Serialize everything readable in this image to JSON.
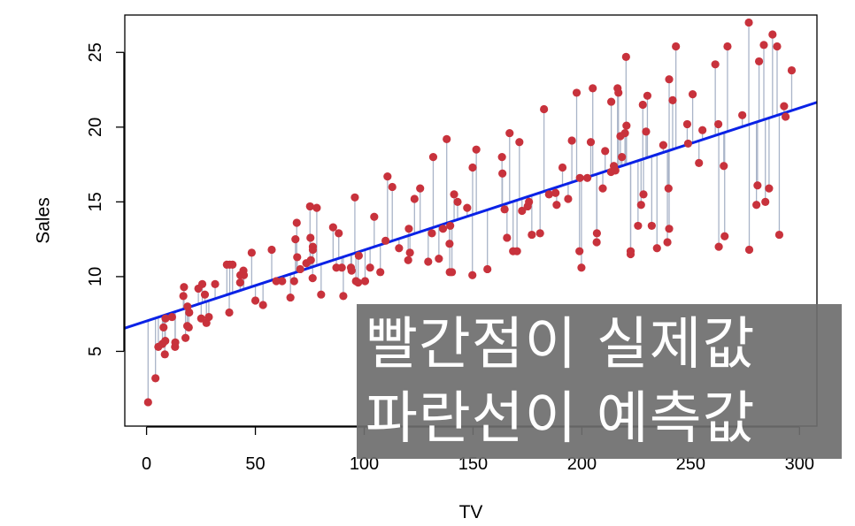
{
  "chart_data": {
    "type": "scatter",
    "xlabel": "TV",
    "ylabel": "Sales",
    "xlim": [
      -10,
      308
    ],
    "ylim": [
      0,
      27.5
    ],
    "x_ticks": [
      0,
      50,
      100,
      150,
      200,
      250,
      300
    ],
    "y_ticks": [
      5,
      10,
      15,
      20,
      25
    ],
    "grid": false,
    "point_color": "#c8323c",
    "residual_color": "#a9b4c8",
    "regression_line": {
      "intercept": 7.03,
      "slope": 0.0475,
      "color": "#0a22e6"
    },
    "points": [
      [
        0.7,
        1.6
      ],
      [
        4.1,
        3.2
      ],
      [
        5.4,
        5.3
      ],
      [
        7.3,
        5.5
      ],
      [
        7.8,
        6.6
      ],
      [
        8.4,
        4.8
      ],
      [
        8.6,
        5.7
      ],
      [
        8.7,
        7.2
      ],
      [
        11.7,
        7.3
      ],
      [
        13.1,
        5.3
      ],
      [
        13.2,
        5.6
      ],
      [
        16.9,
        8.7
      ],
      [
        17.2,
        9.3
      ],
      [
        17.9,
        5.9
      ],
      [
        18.7,
        6.7
      ],
      [
        18.8,
        8.0
      ],
      [
        19.4,
        6.6
      ],
      [
        19.6,
        7.6
      ],
      [
        23.8,
        9.2
      ],
      [
        25.1,
        7.2
      ],
      [
        25.6,
        9.5
      ],
      [
        26.8,
        8.8
      ],
      [
        27.5,
        6.9
      ],
      [
        28.6,
        7.3
      ],
      [
        31.5,
        9.5
      ],
      [
        36.9,
        10.8
      ],
      [
        38.0,
        7.6
      ],
      [
        38.2,
        10.8
      ],
      [
        39.5,
        10.8
      ],
      [
        43.0,
        9.6
      ],
      [
        43.1,
        10.1
      ],
      [
        44.5,
        10.4
      ],
      [
        44.7,
        10.1
      ],
      [
        48.3,
        11.6
      ],
      [
        50.0,
        8.4
      ],
      [
        53.5,
        8.1
      ],
      [
        57.5,
        11.8
      ],
      [
        59.6,
        9.7
      ],
      [
        62.3,
        9.7
      ],
      [
        66.1,
        8.6
      ],
      [
        67.8,
        9.7
      ],
      [
        68.4,
        12.5
      ],
      [
        69.0,
        13.6
      ],
      [
        69.2,
        11.3
      ],
      [
        70.6,
        10.5
      ],
      [
        73.4,
        10.9
      ],
      [
        75.1,
        14.7
      ],
      [
        75.3,
        12.6
      ],
      [
        75.5,
        11.1
      ],
      [
        76.3,
        9.9
      ],
      [
        76.4,
        12.0
      ],
      [
        76.4,
        11.8
      ],
      [
        78.2,
        14.6
      ],
      [
        80.2,
        8.8
      ],
      [
        85.7,
        13.3
      ],
      [
        87.2,
        10.6
      ],
      [
        88.3,
        12.9
      ],
      [
        89.7,
        10.6
      ],
      [
        90.4,
        8.7
      ],
      [
        93.9,
        10.6
      ],
      [
        94.2,
        10.4
      ],
      [
        95.7,
        15.3
      ],
      [
        96.2,
        9.7
      ],
      [
        97.2,
        9.6
      ],
      [
        97.5,
        11.4
      ],
      [
        100.4,
        9.7
      ],
      [
        102.7,
        10.6
      ],
      [
        104.6,
        14.0
      ],
      [
        107.4,
        10.3
      ],
      [
        109.8,
        12.4
      ],
      [
        110.7,
        16.7
      ],
      [
        112.9,
        16.0
      ],
      [
        116.0,
        11.9
      ],
      [
        120.2,
        11.1
      ],
      [
        120.5,
        13.2
      ],
      [
        121.0,
        11.6
      ],
      [
        123.1,
        15.2
      ],
      [
        125.7,
        15.9
      ],
      [
        129.4,
        11.0
      ],
      [
        131.1,
        12.9
      ],
      [
        131.7,
        18.0
      ],
      [
        134.3,
        11.2
      ],
      [
        136.2,
        13.2
      ],
      [
        137.9,
        19.2
      ],
      [
        139.2,
        12.2
      ],
      [
        139.3,
        10.3
      ],
      [
        139.5,
        13.4
      ],
      [
        140.3,
        10.3
      ],
      [
        141.3,
        15.5
      ],
      [
        142.9,
        15.0
      ],
      [
        147.3,
        14.6
      ],
      [
        149.7,
        10.1
      ],
      [
        149.8,
        17.3
      ],
      [
        151.5,
        18.5
      ],
      [
        156.6,
        10.5
      ],
      [
        163.3,
        18.0
      ],
      [
        163.5,
        16.9
      ],
      [
        164.5,
        14.5
      ],
      [
        165.6,
        12.6
      ],
      [
        166.8,
        19.6
      ],
      [
        168.4,
        11.7
      ],
      [
        170.2,
        11.7
      ],
      [
        171.3,
        19.0
      ],
      [
        172.5,
        14.4
      ],
      [
        175.1,
        14.7
      ],
      [
        175.7,
        15.0
      ],
      [
        177.0,
        12.8
      ],
      [
        180.8,
        12.9
      ],
      [
        182.6,
        21.2
      ],
      [
        184.9,
        15.5
      ],
      [
        187.9,
        15.6
      ],
      [
        188.4,
        14.8
      ],
      [
        191.1,
        17.3
      ],
      [
        193.7,
        15.2
      ],
      [
        195.4,
        19.1
      ],
      [
        197.6,
        22.3
      ],
      [
        198.9,
        11.7
      ],
      [
        199.1,
        16.6
      ],
      [
        199.8,
        10.6
      ],
      [
        202.5,
        16.6
      ],
      [
        204.1,
        19.0
      ],
      [
        205.0,
        22.6
      ],
      [
        206.8,
        12.3
      ],
      [
        206.9,
        12.9
      ],
      [
        209.6,
        15.9
      ],
      [
        210.7,
        18.4
      ],
      [
        213.4,
        17.0
      ],
      [
        213.5,
        21.7
      ],
      [
        214.7,
        17.4
      ],
      [
        215.4,
        17.1
      ],
      [
        216.4,
        22.6
      ],
      [
        216.8,
        22.3
      ],
      [
        217.7,
        19.4
      ],
      [
        218.4,
        18.0
      ],
      [
        219.8,
        19.6
      ],
      [
        220.3,
        24.7
      ],
      [
        220.5,
        20.1
      ],
      [
        222.4,
        11.7
      ],
      [
        222.4,
        11.5
      ],
      [
        225.8,
        13.4
      ],
      [
        227.2,
        14.8
      ],
      [
        228.0,
        21.5
      ],
      [
        228.3,
        15.5
      ],
      [
        229.5,
        19.7
      ],
      [
        230.1,
        22.1
      ],
      [
        232.1,
        13.4
      ],
      [
        234.5,
        11.9
      ],
      [
        237.4,
        18.8
      ],
      [
        239.3,
        12.3
      ],
      [
        239.8,
        15.9
      ],
      [
        240.1,
        23.2
      ],
      [
        240.1,
        13.2
      ],
      [
        241.7,
        21.8
      ],
      [
        243.2,
        25.4
      ],
      [
        248.4,
        20.2
      ],
      [
        248.8,
        18.9
      ],
      [
        250.9,
        22.2
      ],
      [
        253.8,
        17.6
      ],
      [
        255.4,
        19.8
      ],
      [
        261.3,
        24.2
      ],
      [
        262.7,
        20.2
      ],
      [
        262.9,
        12.0
      ],
      [
        265.2,
        17.4
      ],
      [
        265.6,
        12.7
      ],
      [
        266.9,
        25.4
      ],
      [
        273.7,
        20.8
      ],
      [
        276.7,
        27.0
      ],
      [
        276.9,
        11.8
      ],
      [
        280.2,
        14.8
      ],
      [
        280.7,
        16.1
      ],
      [
        281.4,
        24.4
      ],
      [
        283.6,
        25.5
      ],
      [
        284.3,
        15.0
      ],
      [
        286.0,
        15.9
      ],
      [
        287.6,
        26.2
      ],
      [
        289.7,
        25.4
      ],
      [
        290.7,
        12.8
      ],
      [
        292.9,
        21.4
      ],
      [
        293.6,
        20.7
      ],
      [
        296.4,
        23.8
      ]
    ]
  },
  "overlay": {
    "line1": "빨간점이 실제값",
    "line2": "파란선이 예측값"
  }
}
